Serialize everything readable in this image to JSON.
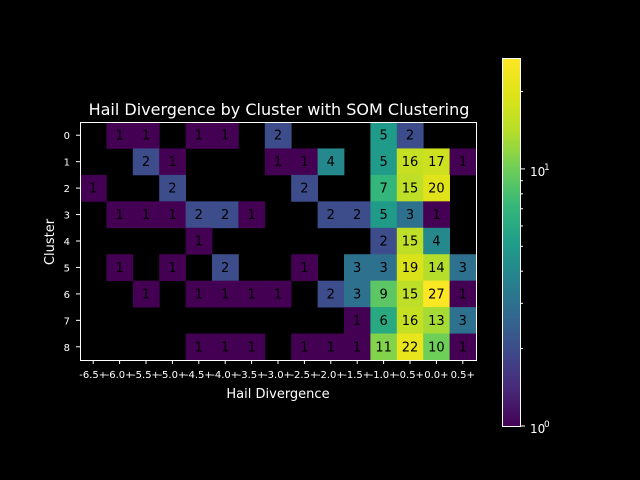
{
  "chart_data": {
    "type": "heatmap",
    "title": "Hail Divergence by Cluster with SOM Clustering",
    "xlabel": "Hail Divergence",
    "ylabel": "Cluster",
    "x_tick_labels": [
      "-6.5+",
      "-6.0+",
      "-5.5+",
      "-5.0+",
      "-4.5+",
      "-4.0+",
      "-3.5+",
      "-3.0+",
      "-2.5+",
      "-2.0+",
      "-1.5+",
      "-1.0+",
      "-0.5+",
      "0.0+",
      "0.5+"
    ],
    "y_tick_labels": [
      "0",
      "1",
      "2",
      "3",
      "4",
      "5",
      "6",
      "7",
      "8"
    ],
    "values": [
      [
        null,
        1,
        1,
        null,
        1,
        1,
        null,
        2,
        null,
        null,
        null,
        5,
        2,
        null,
        null
      ],
      [
        null,
        null,
        2,
        1,
        null,
        null,
        null,
        1,
        1,
        4,
        null,
        5,
        16,
        17,
        1
      ],
      [
        1,
        null,
        null,
        2,
        null,
        null,
        null,
        null,
        2,
        null,
        null,
        7,
        15,
        20,
        null
      ],
      [
        null,
        1,
        1,
        1,
        2,
        2,
        1,
        null,
        null,
        2,
        2,
        5,
        3,
        1,
        null
      ],
      [
        null,
        null,
        null,
        null,
        1,
        null,
        null,
        null,
        null,
        null,
        null,
        2,
        15,
        4,
        null
      ],
      [
        null,
        1,
        null,
        1,
        null,
        2,
        null,
        null,
        1,
        null,
        3,
        3,
        19,
        14,
        3
      ],
      [
        null,
        null,
        1,
        null,
        1,
        1,
        1,
        1,
        null,
        2,
        3,
        9,
        15,
        27,
        1
      ],
      [
        null,
        null,
        null,
        null,
        null,
        null,
        null,
        null,
        null,
        null,
        1,
        6,
        16,
        13,
        3
      ],
      [
        null,
        null,
        null,
        null,
        1,
        1,
        1,
        null,
        1,
        1,
        1,
        11,
        22,
        10,
        1
      ]
    ],
    "color_scale": "log",
    "colormap": "viridis",
    "vmin": 1,
    "vmax": 27,
    "colorbar_labels": [
      "10",
      "0",
      "10",
      "1"
    ]
  }
}
